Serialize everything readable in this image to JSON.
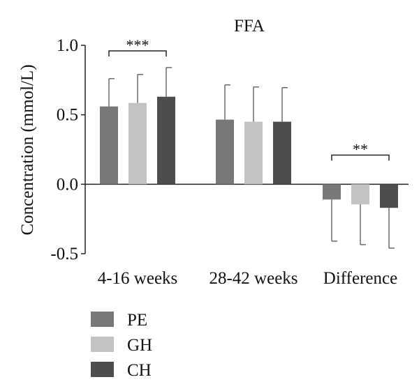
{
  "chart_data": {
    "type": "bar",
    "title": "FFA",
    "xlabel": "",
    "ylabel": "Concentration (mmol/L)",
    "ylim": [
      -0.5,
      1.0
    ],
    "yticks": [
      {
        "value": 1.0,
        "label": "1.0"
      },
      {
        "value": 0.5,
        "label": "0.5"
      },
      {
        "value": 0.0,
        "label": "0.0"
      },
      {
        "value": -0.5,
        "label": "-0.5"
      }
    ],
    "grid": false,
    "legend_position": "bottom-left",
    "categories": [
      "4-16 weeks",
      "28-42 weeks",
      "Difference"
    ],
    "series": [
      {
        "name": "PE",
        "color": "#787878",
        "values": [
          0.56,
          0.465,
          -0.11
        ],
        "errors": [
          0.2,
          0.25,
          0.3
        ]
      },
      {
        "name": "GH",
        "color": "#c3c3c3",
        "values": [
          0.585,
          0.45,
          -0.145
        ],
        "errors": [
          0.205,
          0.25,
          0.29
        ]
      },
      {
        "name": "CH",
        "color": "#4d4d4d",
        "values": [
          0.63,
          0.45,
          -0.17
        ],
        "errors": [
          0.21,
          0.245,
          0.29
        ]
      }
    ],
    "annotations": [
      {
        "category": 0,
        "from_series": 0,
        "to_series": 2,
        "text": "***",
        "level": 0.96
      },
      {
        "category": 2,
        "from_series": 0,
        "to_series": 2,
        "text": "**",
        "level": 0.21
      }
    ]
  }
}
